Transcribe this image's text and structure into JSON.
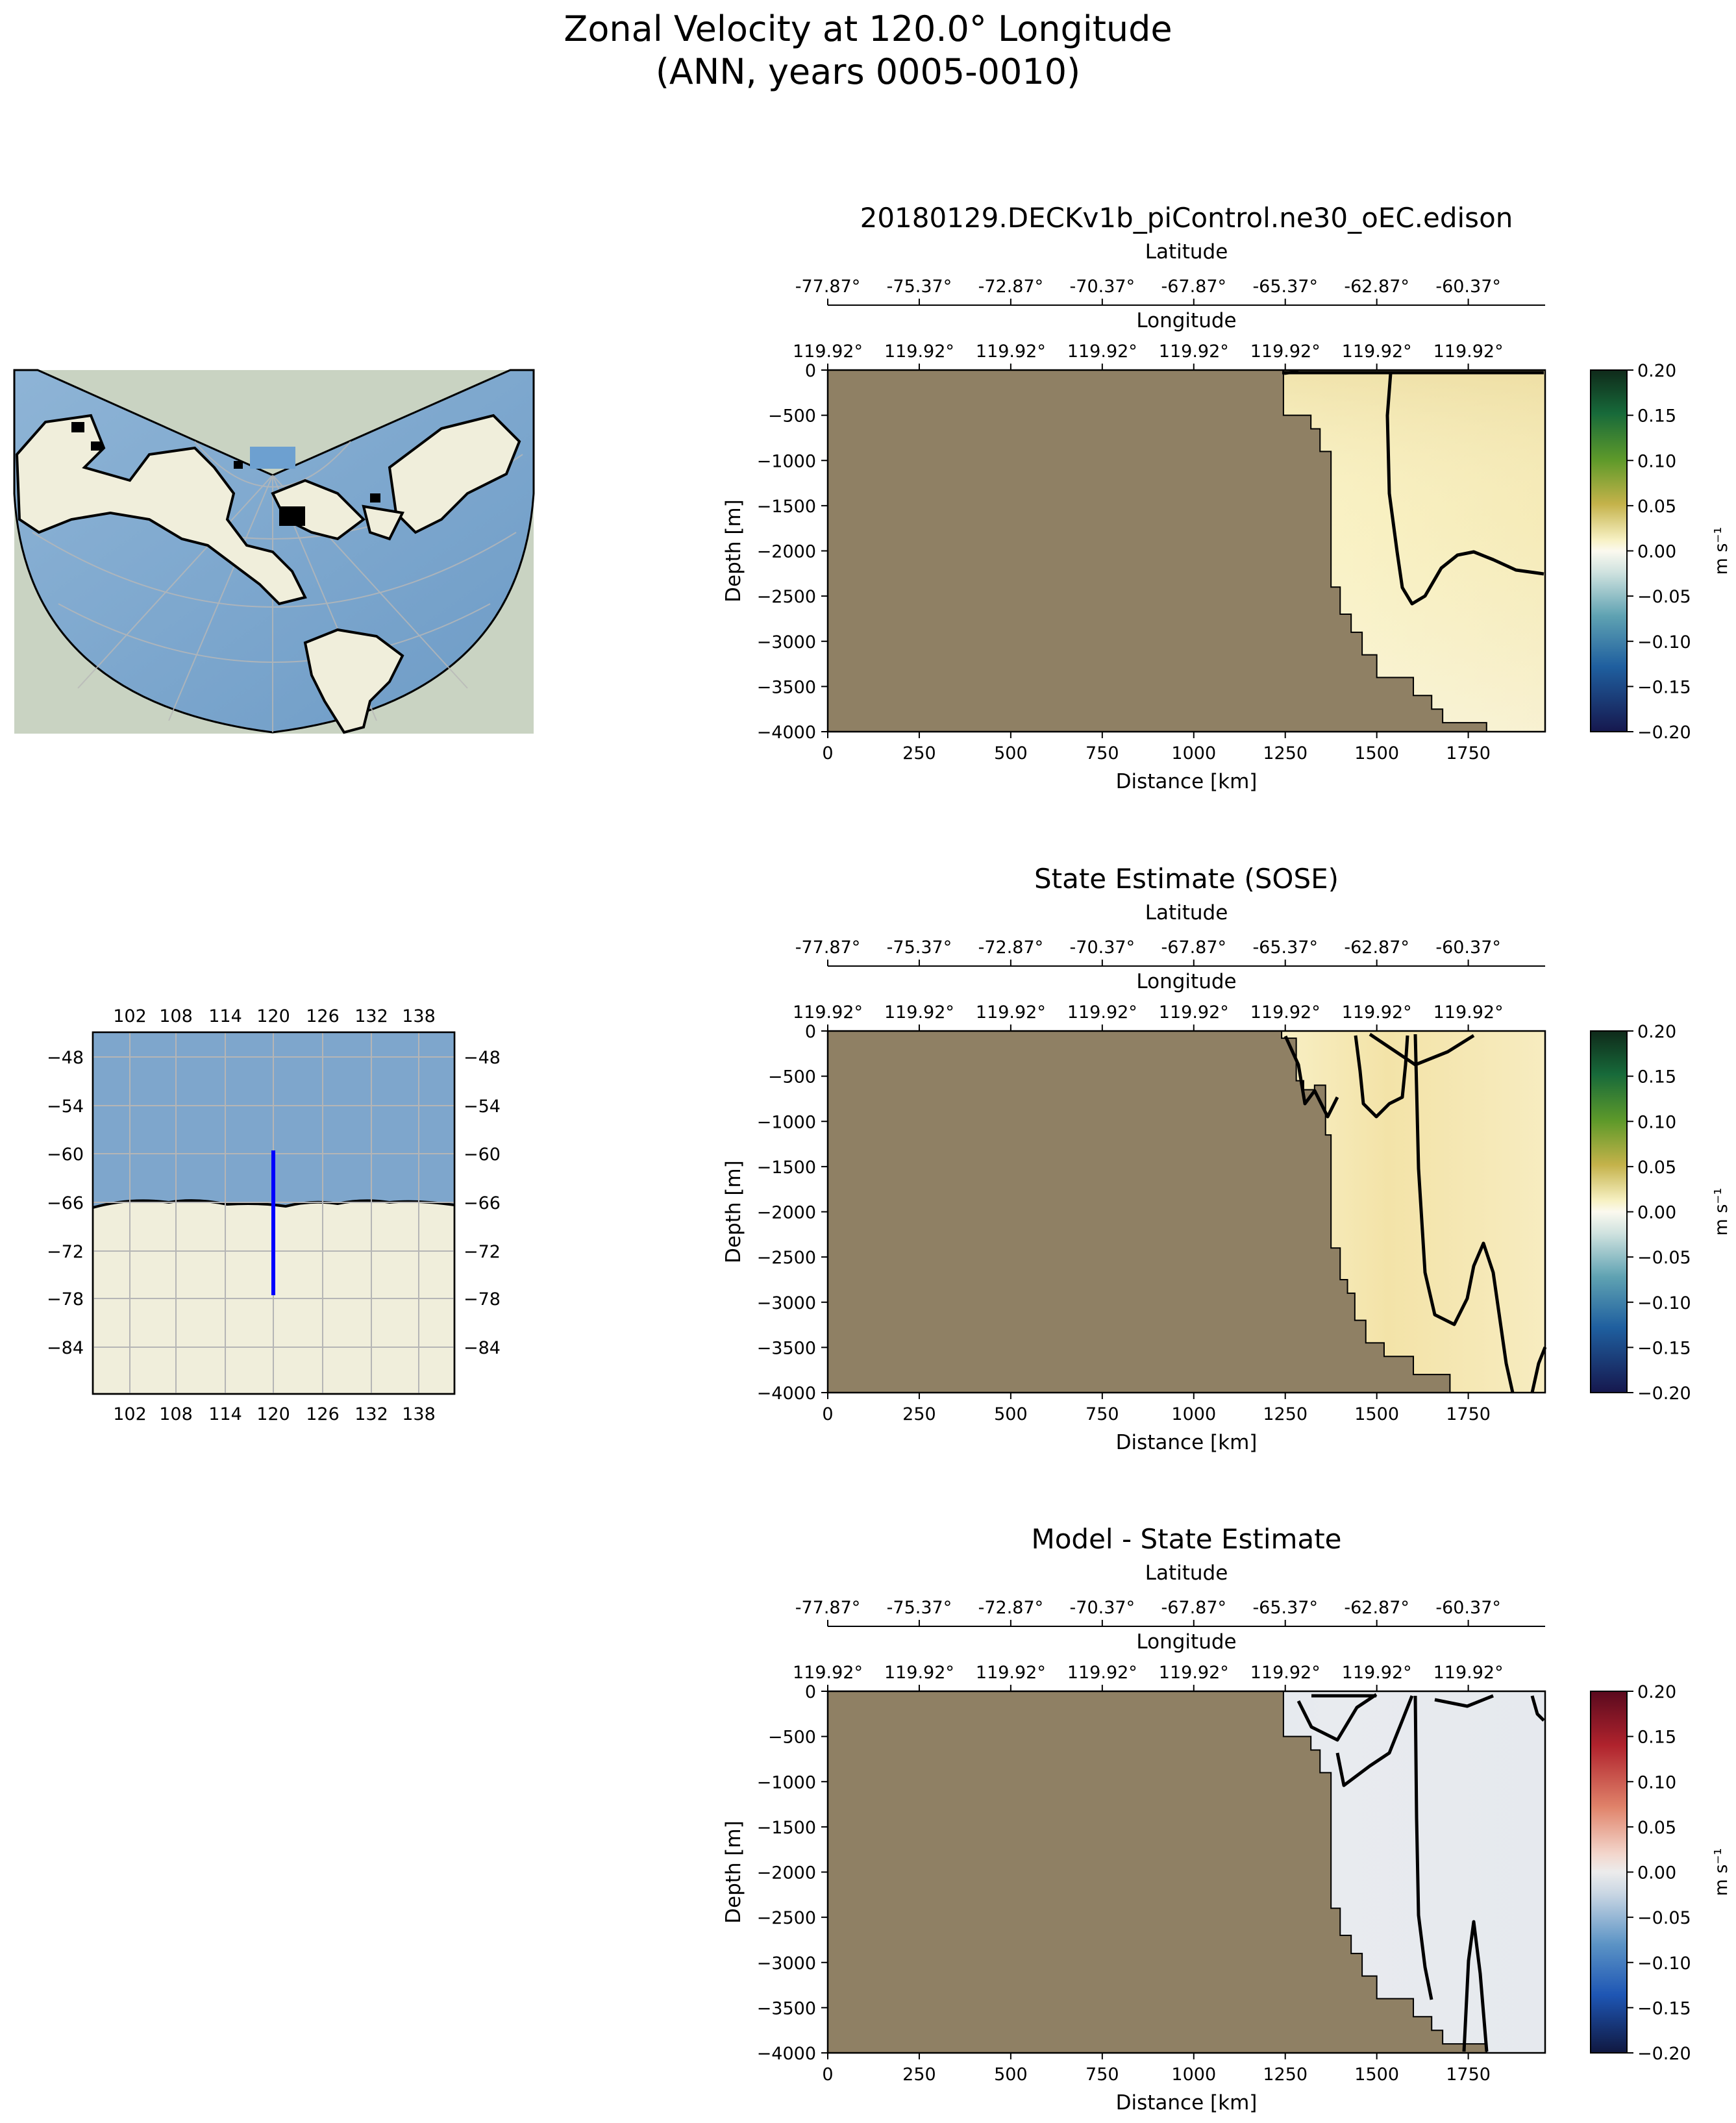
{
  "figure": {
    "title_line1": "Zonal Velocity at 120.0° Longitude",
    "title_line2": "(ANN, years 0005-0010)"
  },
  "colors": {
    "land": "#8f8064",
    "ocean": "#7ea6cc",
    "map_land": "#f0eedb",
    "transect_line": "#0000ff",
    "contour": "#000000"
  },
  "transect": {
    "latitude_label": "Latitude",
    "longitude_label": "Longitude",
    "latitude_ticks": [
      "-77.87°",
      "-75.37°",
      "-72.87°",
      "-70.37°",
      "-67.87°",
      "-65.37°",
      "-62.87°",
      "-60.37°"
    ],
    "longitude_ticks": [
      "119.92°",
      "119.92°",
      "119.92°",
      "119.92°",
      "119.92°",
      "119.92°",
      "119.92°",
      "119.92°"
    ]
  },
  "chart_data": [
    {
      "type": "heatmap",
      "title": "20180129.DECKv1b_piControl.ne30_oEC.edison",
      "xlabel": "Distance [km]",
      "ylabel": "Depth [m]",
      "xlim": [
        0,
        1960
      ],
      "ylim": [
        -4000,
        0
      ],
      "xticks": [
        0,
        250,
        500,
        750,
        1000,
        1250,
        1500,
        1750
      ],
      "yticks": [
        0,
        -500,
        -1000,
        -1500,
        -2000,
        -2500,
        -3000,
        -3500,
        -4000
      ],
      "colormap": "green-white-blue (velocity)",
      "colorbar": {
        "label": "m s⁻¹",
        "range": [
          -0.2,
          0.2
        ],
        "ticks": [
          "0.20",
          "0.15",
          "0.10",
          "0.05",
          "0.00",
          "−0.05",
          "−0.10",
          "−0.15",
          "−0.20"
        ]
      },
      "bathymetry": [
        [
          1245,
          0
        ],
        [
          1245,
          -500
        ],
        [
          1320,
          -500
        ],
        [
          1320,
          -650
        ],
        [
          1345,
          -650
        ],
        [
          1345,
          -900
        ],
        [
          1375,
          -900
        ],
        [
          1375,
          -2400
        ],
        [
          1400,
          -2400
        ],
        [
          1400,
          -2700
        ],
        [
          1430,
          -2700
        ],
        [
          1430,
          -2900
        ],
        [
          1460,
          -2900
        ],
        [
          1460,
          -3150
        ],
        [
          1500,
          -3150
        ],
        [
          1500,
          -3400
        ],
        [
          1600,
          -3400
        ],
        [
          1600,
          -3600
        ],
        [
          1650,
          -3600
        ],
        [
          1650,
          -3750
        ],
        [
          1680,
          -3750
        ],
        [
          1680,
          -3900
        ],
        [
          1800,
          -3900
        ],
        [
          1800,
          -4000
        ]
      ]
    },
    {
      "type": "heatmap",
      "title": "State Estimate (SOSE)",
      "xlabel": "Distance [km]",
      "ylabel": "Depth [m]",
      "xlim": [
        0,
        1960
      ],
      "ylim": [
        -4000,
        0
      ],
      "xticks": [
        0,
        250,
        500,
        750,
        1000,
        1250,
        1500,
        1750
      ],
      "yticks": [
        0,
        -500,
        -1000,
        -1500,
        -2000,
        -2500,
        -3000,
        -3500,
        -4000
      ],
      "colormap": "green-white-blue (velocity)",
      "colorbar": {
        "label": "m s⁻¹",
        "range": [
          -0.2,
          0.2
        ],
        "ticks": [
          "0.20",
          "0.15",
          "0.10",
          "0.05",
          "0.00",
          "−0.05",
          "−0.10",
          "−0.15",
          "−0.20"
        ]
      },
      "bathymetry": [
        [
          1240,
          0
        ],
        [
          1240,
          -80
        ],
        [
          1280,
          -80
        ],
        [
          1280,
          -550
        ],
        [
          1300,
          -550
        ],
        [
          1300,
          -650
        ],
        [
          1330,
          -650
        ],
        [
          1330,
          -600
        ],
        [
          1360,
          -600
        ],
        [
          1360,
          -1150
        ],
        [
          1375,
          -1150
        ],
        [
          1375,
          -2400
        ],
        [
          1400,
          -2400
        ],
        [
          1400,
          -2750
        ],
        [
          1420,
          -2750
        ],
        [
          1420,
          -2900
        ],
        [
          1440,
          -2900
        ],
        [
          1440,
          -3200
        ],
        [
          1470,
          -3200
        ],
        [
          1470,
          -3450
        ],
        [
          1520,
          -3450
        ],
        [
          1520,
          -3600
        ],
        [
          1600,
          -3600
        ],
        [
          1600,
          -3800
        ],
        [
          1700,
          -3800
        ],
        [
          1700,
          -4000
        ]
      ]
    },
    {
      "type": "heatmap",
      "title": "Model - State Estimate",
      "xlabel": "Distance [km]",
      "ylabel": "Depth [m]",
      "xlim": [
        0,
        1960
      ],
      "ylim": [
        -4000,
        0
      ],
      "xticks": [
        0,
        250,
        500,
        750,
        1000,
        1250,
        1500,
        1750
      ],
      "yticks": [
        0,
        -500,
        -1000,
        -1500,
        -2000,
        -2500,
        -3000,
        -3500,
        -4000
      ],
      "colormap": "red-white-blue (difference)",
      "colorbar": {
        "label": "m s⁻¹",
        "range": [
          -0.2,
          0.2
        ],
        "ticks": [
          "0.20",
          "0.15",
          "0.10",
          "0.05",
          "0.00",
          "−0.05",
          "−0.10",
          "−0.15",
          "−0.20"
        ]
      },
      "bathymetry": [
        [
          1245,
          0
        ],
        [
          1245,
          -500
        ],
        [
          1320,
          -500
        ],
        [
          1320,
          -650
        ],
        [
          1345,
          -650
        ],
        [
          1345,
          -900
        ],
        [
          1375,
          -900
        ],
        [
          1375,
          -2400
        ],
        [
          1400,
          -2400
        ],
        [
          1400,
          -2700
        ],
        [
          1430,
          -2700
        ],
        [
          1430,
          -2900
        ],
        [
          1460,
          -2900
        ],
        [
          1460,
          -3150
        ],
        [
          1500,
          -3150
        ],
        [
          1500,
          -3400
        ],
        [
          1600,
          -3400
        ],
        [
          1600,
          -3600
        ],
        [
          1650,
          -3600
        ],
        [
          1650,
          -3750
        ],
        [
          1680,
          -3750
        ],
        [
          1680,
          -3900
        ],
        [
          1800,
          -3900
        ],
        [
          1800,
          -4000
        ]
      ]
    }
  ],
  "inset_map": {
    "x_ticks": [
      "102",
      "108",
      "114",
      "120",
      "126",
      "132",
      "138"
    ],
    "y_ticks": [
      "−48",
      "−54",
      "−60",
      "−66",
      "−72",
      "−78",
      "−84"
    ],
    "transect_lon": 120,
    "transect_lat_range": [
      -78,
      -60
    ]
  }
}
